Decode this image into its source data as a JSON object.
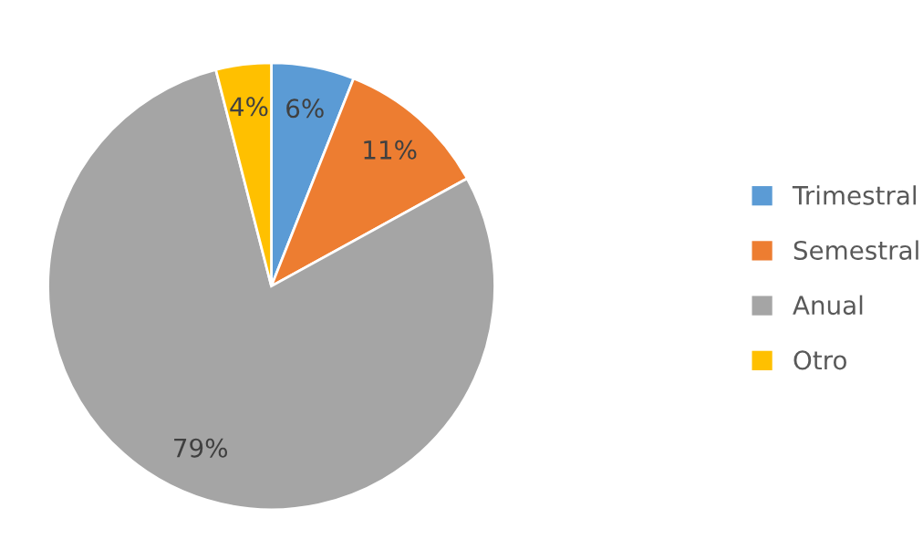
{
  "chart_data": {
    "type": "pie",
    "categories": [
      "Trimestral",
      "Semestral",
      "Anual",
      "Otro"
    ],
    "values": [
      6,
      11,
      79,
      4
    ],
    "value_labels": [
      "6%",
      "11%",
      "79%",
      "4%"
    ],
    "colors": [
      "#5b9bd5",
      "#ed7d31",
      "#a5a5a5",
      "#ffc000"
    ],
    "legend": "right"
  }
}
